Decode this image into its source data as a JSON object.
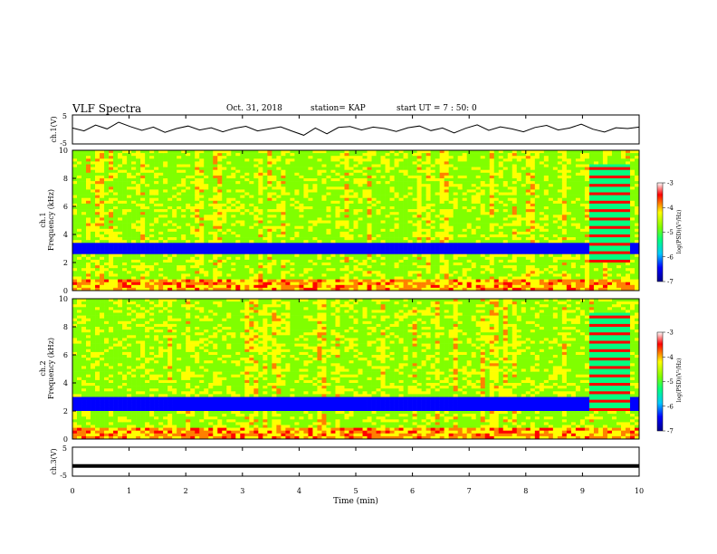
{
  "header": {
    "title": "VLF Spectra",
    "date": "Oct. 31, 2018",
    "station": "station= KAP",
    "start": "start  UT =   7 : 50: 0"
  },
  "chart_data": [
    {
      "type": "line",
      "panel": "ch1-waveform",
      "ylabel": "ch.1(V)",
      "ylim": [
        -5,
        5
      ],
      "yticks": [
        "5",
        "-5"
      ],
      "xlim": [
        0,
        10
      ],
      "series": [
        {
          "values": [
            0.5,
            -0.5,
            1.5,
            0.2,
            2.5,
            1.0,
            -0.3,
            0.8,
            -1.0,
            0.3,
            1.2,
            -0.2,
            0.6,
            -0.8,
            0.4,
            1.1,
            -0.5,
            0.2,
            0.9,
            -0.6,
            -2.0,
            0.5,
            -1.5,
            0.7,
            1.0,
            -0.2,
            0.8,
            0.3,
            -0.7,
            0.6,
            1.2,
            -0.4,
            0.5,
            -1.2,
            0.4,
            1.6,
            -0.3,
            0.9,
            0.2,
            -0.8,
            0.7,
            1.4,
            -0.2,
            0.5,
            1.8,
            0.1,
            -0.9,
            0.6,
            0.3,
            0.8
          ]
        }
      ]
    },
    {
      "type": "heatmap",
      "panel": "ch1-spectrogram",
      "ylabel_channel": "ch.1",
      "ylabel": "Frequency (kHz)",
      "ylim": [
        0,
        10
      ],
      "yticks": [
        0,
        2,
        4,
        6,
        8,
        10
      ],
      "xlim": [
        0,
        10
      ],
      "colorbar": {
        "label": "log(PSD)(V²/Hz)",
        "range": [
          -7,
          -3
        ],
        "ticks": [
          "-3",
          "-4",
          "-5",
          "-6",
          "-7"
        ]
      }
    },
    {
      "type": "heatmap",
      "panel": "ch2-spectrogram",
      "ylabel_channel": "ch.2",
      "ylabel": "Frequency (kHz)",
      "ylim": [
        0,
        10
      ],
      "yticks": [
        0,
        2,
        4,
        6,
        8,
        10
      ],
      "xlim": [
        0,
        10
      ],
      "colorbar": {
        "label": "log(PSD)(V²/Hz)",
        "range": [
          -7,
          -3
        ],
        "ticks": [
          "-3",
          "-4",
          "-5",
          "-6",
          "-7"
        ]
      }
    },
    {
      "type": "line",
      "panel": "ch3-waveform",
      "ylabel": "ch.3(V)",
      "ylim": [
        -5,
        5
      ],
      "yticks": [
        "5",
        "-5"
      ],
      "xlim": [
        0,
        10
      ],
      "series": [
        {
          "values": [
            -1.5,
            -1.5
          ]
        }
      ]
    }
  ],
  "xaxis": {
    "label": "Time (min)",
    "ticks": [
      "0",
      "1",
      "2",
      "3",
      "4",
      "5",
      "6",
      "7",
      "8",
      "9",
      "10"
    ]
  },
  "colors": {
    "colormap": [
      "#00008b",
      "#0000ff",
      "#00c8ff",
      "#00ff80",
      "#80ff00",
      "#ffff00",
      "#ff8000",
      "#ff0000",
      "#ffffff"
    ]
  }
}
